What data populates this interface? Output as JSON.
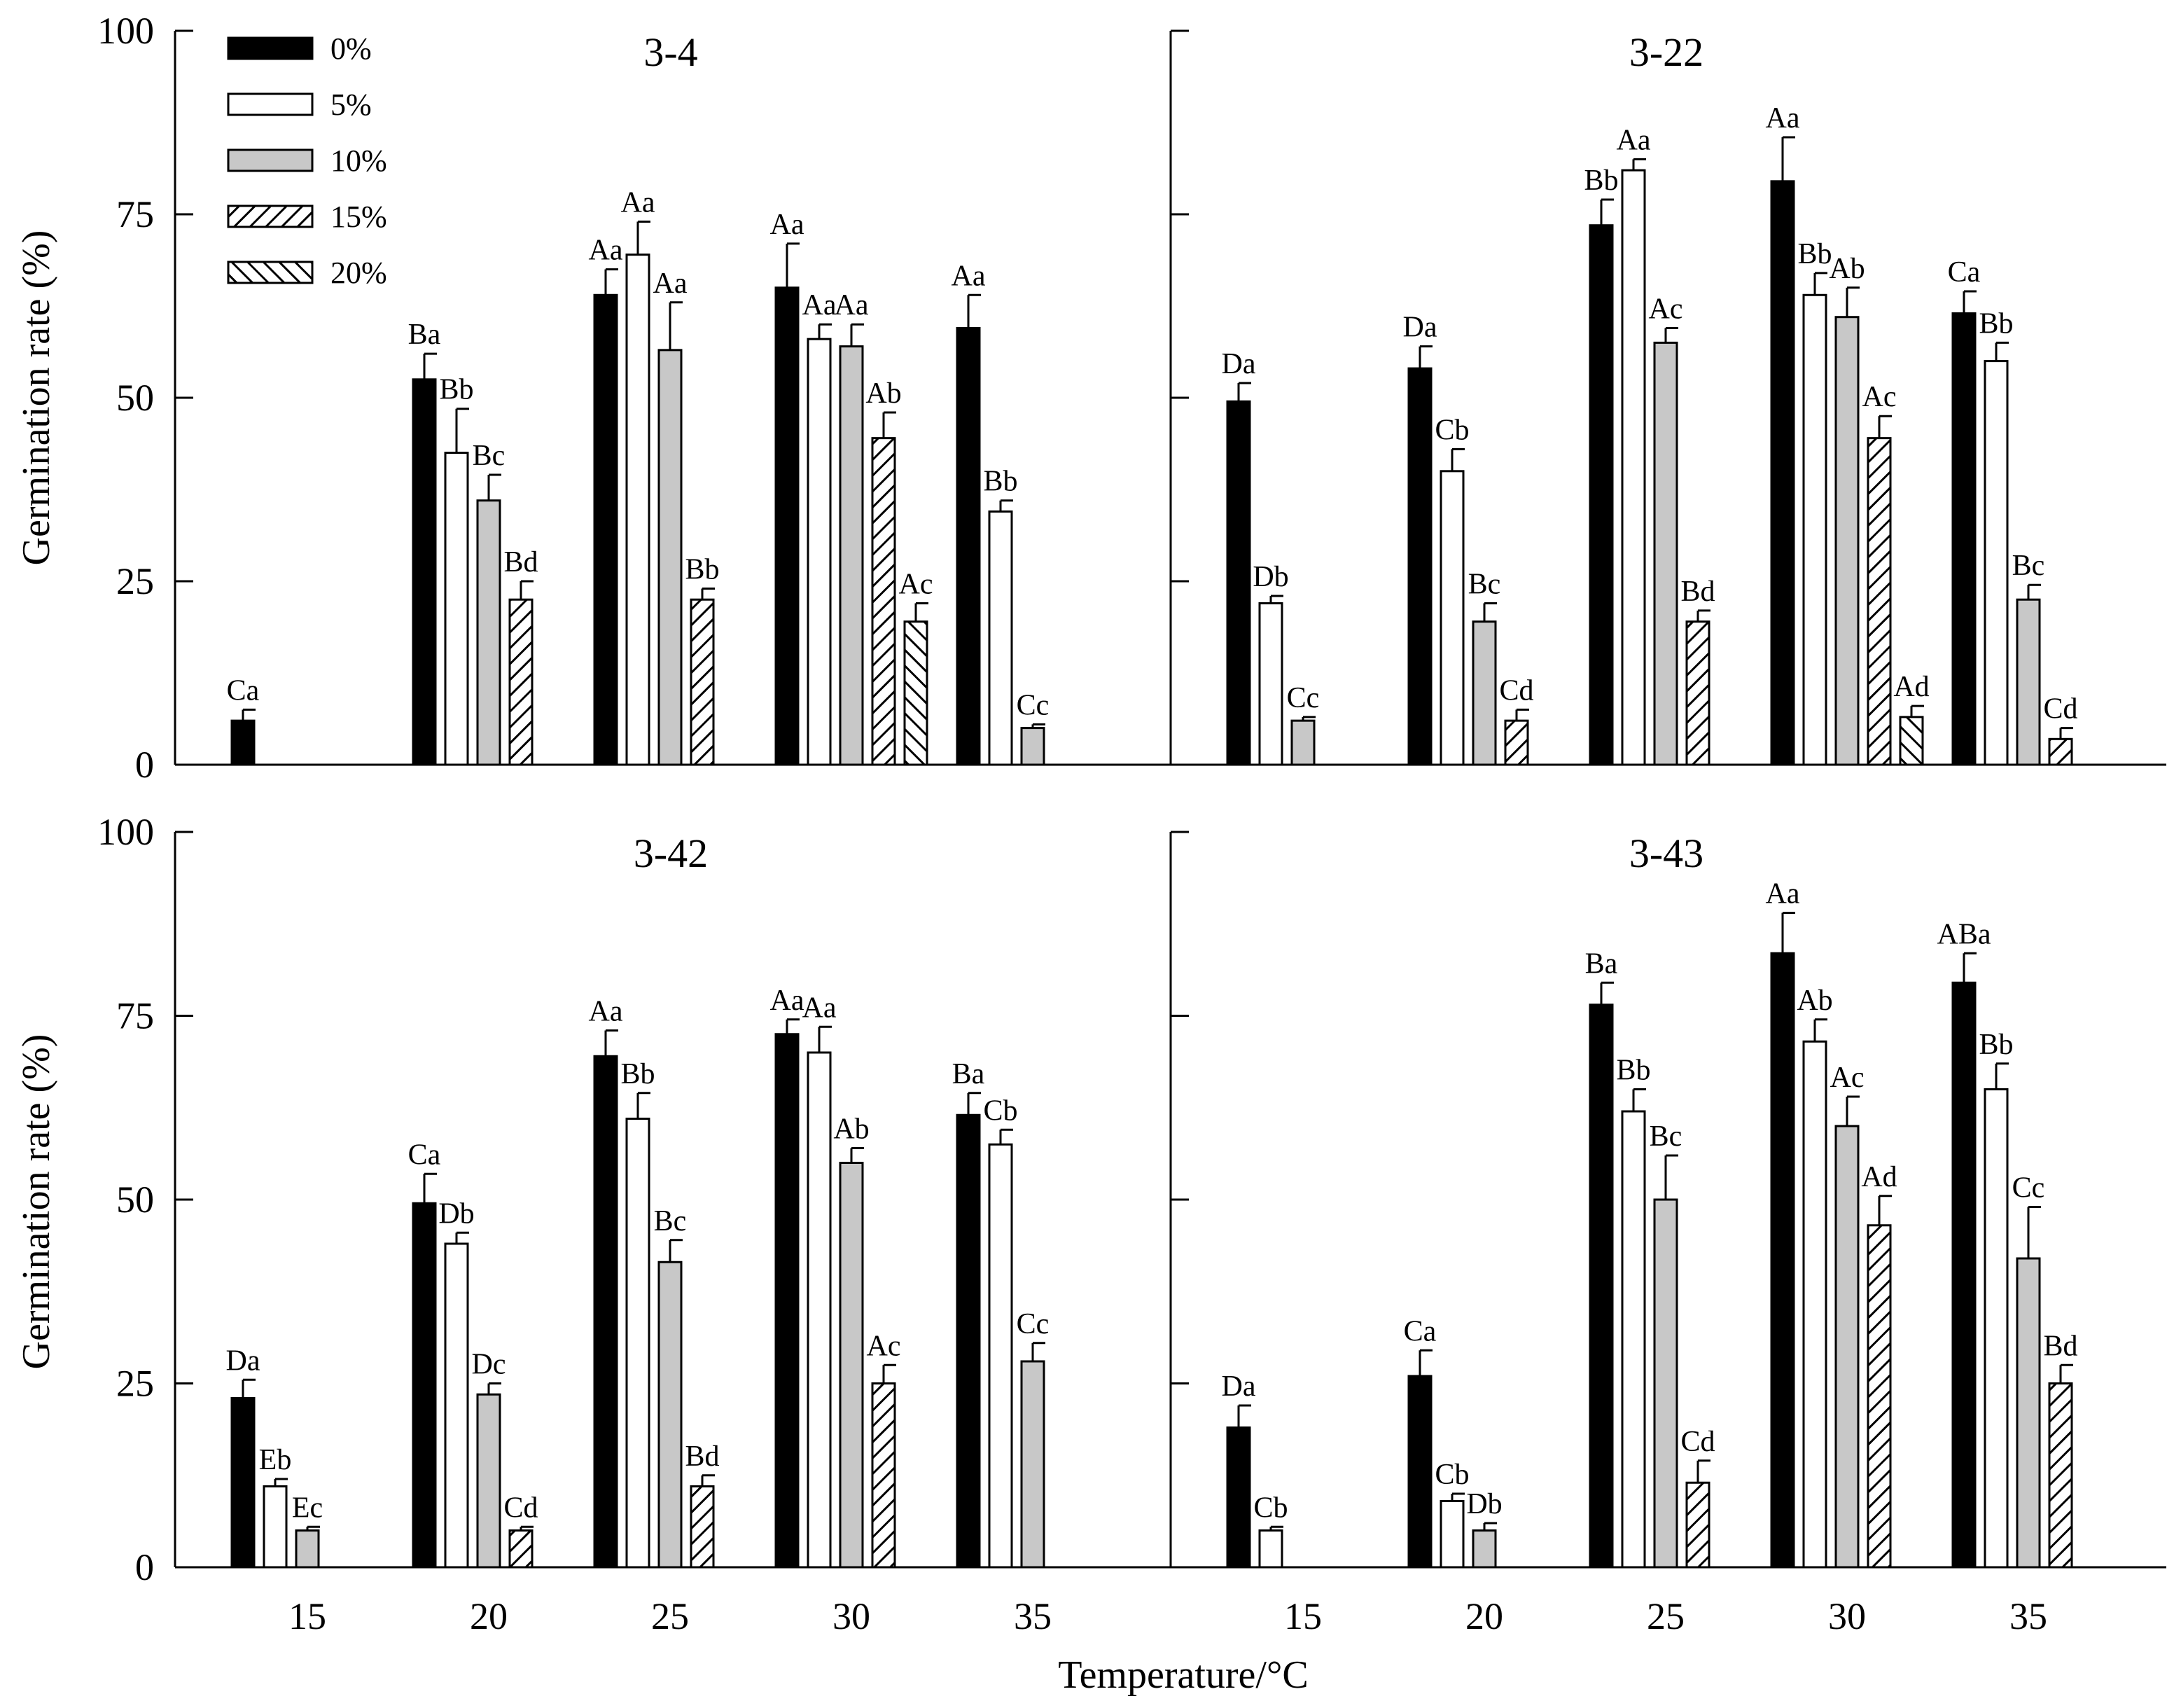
{
  "chart_data": {
    "type": "bar",
    "xlabel": "Temperature/°C",
    "ylabel": "Germination rate (%)",
    "ylim": [
      0,
      100
    ],
    "yticks": [
      0,
      25,
      50,
      75,
      100
    ],
    "categories": [
      "15",
      "20",
      "25",
      "30",
      "35"
    ],
    "series_names": [
      "0%",
      "5%",
      "10%",
      "15%",
      "20%"
    ],
    "series_patterns": [
      "solid-black",
      "white",
      "gray",
      "hatch-right",
      "hatch-left"
    ],
    "colors": {
      "black": "#000000",
      "white": "#ffffff",
      "gray": "#c8c8c8"
    },
    "panels": [
      {
        "title": "3-4",
        "groups": [
          {
            "temp": "15",
            "bars": [
              {
                "series": "0%",
                "value": 6,
                "err": 1.5,
                "label": "Ca"
              }
            ]
          },
          {
            "temp": "20",
            "bars": [
              {
                "series": "0%",
                "value": 52.5,
                "err": 3.5,
                "label": "Ba"
              },
              {
                "series": "5%",
                "value": 42.5,
                "err": 6,
                "label": "Bb"
              },
              {
                "series": "10%",
                "value": 36,
                "err": 3.5,
                "label": "Bc"
              },
              {
                "series": "15%",
                "value": 22.5,
                "err": 2.5,
                "label": "Bd"
              }
            ]
          },
          {
            "temp": "25",
            "bars": [
              {
                "series": "0%",
                "value": 64,
                "err": 3.5,
                "label": "Aa"
              },
              {
                "series": "5%",
                "value": 69.5,
                "err": 4.5,
                "label": "Aa"
              },
              {
                "series": "10%",
                "value": 56.5,
                "err": 6.5,
                "label": "Aa"
              },
              {
                "series": "15%",
                "value": 22.5,
                "err": 1.5,
                "label": "Bb"
              }
            ]
          },
          {
            "temp": "30",
            "bars": [
              {
                "series": "0%",
                "value": 65,
                "err": 6,
                "label": "Aa"
              },
              {
                "series": "5%",
                "value": 58,
                "err": 2,
                "label": "Aa"
              },
              {
                "series": "10%",
                "value": 57,
                "err": 3,
                "label": "Aa"
              },
              {
                "series": "15%",
                "value": 44.5,
                "err": 3.5,
                "label": "Ab"
              },
              {
                "series": "20%",
                "value": 19.5,
                "err": 2.5,
                "label": "Ac"
              }
            ]
          },
          {
            "temp": "35",
            "bars": [
              {
                "series": "0%",
                "value": 59.5,
                "err": 4.5,
                "label": "Aa"
              },
              {
                "series": "5%",
                "value": 34.5,
                "err": 1.5,
                "label": "Bb"
              },
              {
                "series": "10%",
                "value": 5,
                "err": 0.5,
                "label": "Cc"
              }
            ]
          }
        ]
      },
      {
        "title": "3-22",
        "groups": [
          {
            "temp": "15",
            "bars": [
              {
                "series": "0%",
                "value": 49.5,
                "err": 2.5,
                "label": "Da"
              },
              {
                "series": "5%",
                "value": 22,
                "err": 1,
                "label": "Db"
              },
              {
                "series": "10%",
                "value": 6,
                "err": 0.5,
                "label": "Cc"
              }
            ]
          },
          {
            "temp": "20",
            "bars": [
              {
                "series": "0%",
                "value": 54,
                "err": 3,
                "label": "Da"
              },
              {
                "series": "5%",
                "value": 40,
                "err": 3,
                "label": "Cb"
              },
              {
                "series": "10%",
                "value": 19.5,
                "err": 2.5,
                "label": "Bc"
              },
              {
                "series": "15%",
                "value": 6,
                "err": 1.5,
                "label": "Cd"
              }
            ]
          },
          {
            "temp": "25",
            "bars": [
              {
                "series": "0%",
                "value": 73.5,
                "err": 3.5,
                "label": "Bb"
              },
              {
                "series": "5%",
                "value": 81,
                "err": 1.5,
                "label": "Aa"
              },
              {
                "series": "10%",
                "value": 57.5,
                "err": 2,
                "label": "Ac"
              },
              {
                "series": "15%",
                "value": 19.5,
                "err": 1.5,
                "label": "Bd"
              }
            ]
          },
          {
            "temp": "30",
            "bars": [
              {
                "series": "0%",
                "value": 79.5,
                "err": 6,
                "label": "Aa"
              },
              {
                "series": "5%",
                "value": 64,
                "err": 3,
                "label": "Bb"
              },
              {
                "series": "10%",
                "value": 61,
                "err": 4,
                "label": "Ab"
              },
              {
                "series": "15%",
                "value": 44.5,
                "err": 3,
                "label": "Ac"
              },
              {
                "series": "20%",
                "value": 6.5,
                "err": 1.5,
                "label": "Ad"
              }
            ]
          },
          {
            "temp": "35",
            "bars": [
              {
                "series": "0%",
                "value": 61.5,
                "err": 3,
                "label": "Ca"
              },
              {
                "series": "5%",
                "value": 55,
                "err": 2.5,
                "label": "Bb"
              },
              {
                "series": "10%",
                "value": 22.5,
                "err": 2,
                "label": "Bc"
              },
              {
                "series": "15%",
                "value": 3.5,
                "err": 1.5,
                "label": "Cd"
              }
            ]
          }
        ]
      },
      {
        "title": "3-42",
        "groups": [
          {
            "temp": "15",
            "bars": [
              {
                "series": "0%",
                "value": 23,
                "err": 2.5,
                "label": "Da"
              },
              {
                "series": "5%",
                "value": 11,
                "err": 1,
                "label": "Eb"
              },
              {
                "series": "10%",
                "value": 5,
                "err": 0.5,
                "label": "Ec"
              }
            ]
          },
          {
            "temp": "20",
            "bars": [
              {
                "series": "0%",
                "value": 49.5,
                "err": 4,
                "label": "Ca"
              },
              {
                "series": "5%",
                "value": 44,
                "err": 1.5,
                "label": "Db"
              },
              {
                "series": "10%",
                "value": 23.5,
                "err": 1.5,
                "label": "Dc"
              },
              {
                "series": "15%",
                "value": 5,
                "err": 0.5,
                "label": "Cd"
              }
            ]
          },
          {
            "temp": "25",
            "bars": [
              {
                "series": "0%",
                "value": 69.5,
                "err": 3.5,
                "label": "Aa"
              },
              {
                "series": "5%",
                "value": 61,
                "err": 3.5,
                "label": "Bb"
              },
              {
                "series": "10%",
                "value": 41.5,
                "err": 3,
                "label": "Bc"
              },
              {
                "series": "15%",
                "value": 11,
                "err": 1.5,
                "label": "Bd"
              }
            ]
          },
          {
            "temp": "30",
            "bars": [
              {
                "series": "0%",
                "value": 72.5,
                "err": 2,
                "label": "Aa"
              },
              {
                "series": "5%",
                "value": 70,
                "err": 3.5,
                "label": "Aa"
              },
              {
                "series": "10%",
                "value": 55,
                "err": 2,
                "label": "Ab"
              },
              {
                "series": "15%",
                "value": 25,
                "err": 2.5,
                "label": "Ac"
              }
            ]
          },
          {
            "temp": "35",
            "bars": [
              {
                "series": "0%",
                "value": 61.5,
                "err": 3,
                "label": "Ba"
              },
              {
                "series": "5%",
                "value": 57.5,
                "err": 2,
                "label": "Cb"
              },
              {
                "series": "10%",
                "value": 28,
                "err": 2.5,
                "label": "Cc"
              }
            ]
          }
        ]
      },
      {
        "title": "3-43",
        "groups": [
          {
            "temp": "15",
            "bars": [
              {
                "series": "0%",
                "value": 19,
                "err": 3,
                "label": "Da"
              },
              {
                "series": "5%",
                "value": 5,
                "err": 0.5,
                "label": "Cb"
              }
            ]
          },
          {
            "temp": "20",
            "bars": [
              {
                "series": "0%",
                "value": 26,
                "err": 3.5,
                "label": "Ca"
              },
              {
                "series": "5%",
                "value": 9,
                "err": 1,
                "label": "Cb"
              },
              {
                "series": "10%",
                "value": 5,
                "err": 1,
                "label": "Db"
              }
            ]
          },
          {
            "temp": "25",
            "bars": [
              {
                "series": "0%",
                "value": 76.5,
                "err": 3,
                "label": "Ba"
              },
              {
                "series": "5%",
                "value": 62,
                "err": 3,
                "label": "Bb"
              },
              {
                "series": "10%",
                "value": 50,
                "err": 6,
                "label": "Bc"
              },
              {
                "series": "15%",
                "value": 11.5,
                "err": 3,
                "label": "Cd"
              }
            ]
          },
          {
            "temp": "30",
            "bars": [
              {
                "series": "0%",
                "value": 83.5,
                "err": 5.5,
                "label": "Aa"
              },
              {
                "series": "5%",
                "value": 71.5,
                "err": 3,
                "label": "Ab"
              },
              {
                "series": "10%",
                "value": 60,
                "err": 4,
                "label": "Ac"
              },
              {
                "series": "15%",
                "value": 46.5,
                "err": 4,
                "label": "Ad"
              }
            ]
          },
          {
            "temp": "35",
            "bars": [
              {
                "series": "0%",
                "value": 79.5,
                "err": 4,
                "label": "ABa"
              },
              {
                "series": "5%",
                "value": 65,
                "err": 3.5,
                "label": "Bb"
              },
              {
                "series": "10%",
                "value": 42,
                "err": 7,
                "label": "Cc"
              },
              {
                "series": "15%",
                "value": 25,
                "err": 2.5,
                "label": "Bd"
              }
            ]
          }
        ]
      }
    ]
  }
}
